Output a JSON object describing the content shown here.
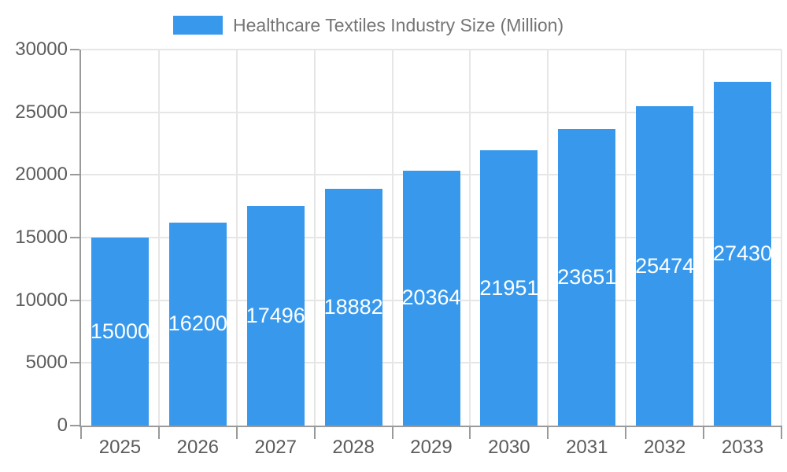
{
  "chart_data": {
    "type": "bar",
    "title": "Healthcare Textiles Industry Size (Million)",
    "legend_position": "top",
    "categories": [
      "2025",
      "2026",
      "2027",
      "2028",
      "2029",
      "2030",
      "2031",
      "2032",
      "2033"
    ],
    "series": [
      {
        "name": "Healthcare Textiles Industry Size (Million)",
        "values": [
          15000,
          16200,
          17496,
          18882,
          20364,
          21951,
          23651,
          25474,
          27430
        ]
      }
    ],
    "value_labels": [
      "15000",
      "16200",
      "17496",
      "18882",
      "20364",
      "21951",
      "23651",
      "25474",
      "27430"
    ],
    "xlabel": "",
    "ylabel": "",
    "ylim": [
      0,
      30000
    ],
    "yticks": [
      0,
      5000,
      10000,
      15000,
      20000,
      25000,
      30000
    ],
    "ytick_labels": [
      "0",
      "5000",
      "10000",
      "15000",
      "20000",
      "25000",
      "30000"
    ],
    "grid": true,
    "value_label_placement": "inside-center",
    "colors": {
      "bar": "#3899ec",
      "value_label": "#ffffff",
      "gridline": "#e6e6e6",
      "axis_line": "#9a9a9a",
      "tick_label": "#5c5c5c",
      "legend_text": "#757575",
      "background": "#ffffff"
    }
  }
}
